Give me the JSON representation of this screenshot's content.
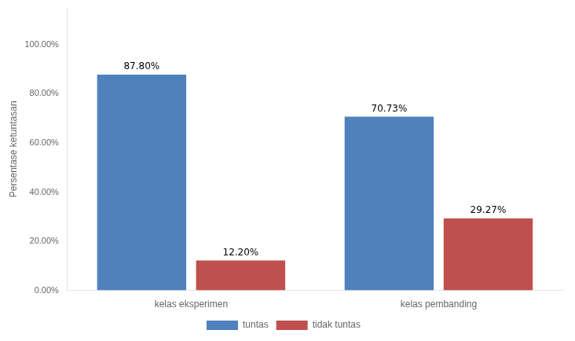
{
  "chart_data": {
    "type": "bar",
    "categories": [
      "kelas eksperimen",
      "kelas pembanding"
    ],
    "series": [
      {
        "name": "tuntas",
        "color": "#4f81bd",
        "values": [
          87.8,
          70.73
        ],
        "value_labels": [
          "87.80%",
          "70.73%"
        ]
      },
      {
        "name": "tidak tuntas",
        "color": "#c0504d",
        "values": [
          12.2,
          29.27
        ],
        "value_labels": [
          "12.20%",
          "29.27%"
        ]
      }
    ],
    "y_label": "Persentase ketuntasan",
    "ylim": [
      0,
      115
    ],
    "yticks": [
      {
        "value": 0,
        "label": "0.00%"
      },
      {
        "value": 20,
        "label": "20.00%"
      },
      {
        "value": 40,
        "label": "40.00%"
      },
      {
        "value": 60,
        "label": "60.00%"
      },
      {
        "value": 80,
        "label": "80.00%"
      },
      {
        "value": 100,
        "label": "100.00%"
      }
    ],
    "grid": false,
    "legend": "bottom",
    "data_labels": true
  }
}
